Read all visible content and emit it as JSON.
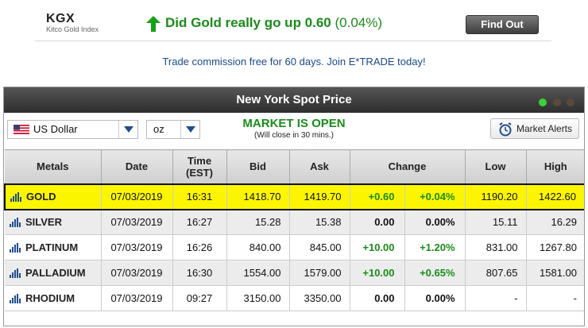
{
  "kgx": {
    "title": "KGX",
    "subtitle": "Kitco Gold Index",
    "question": "Did Gold really go up 0.60",
    "percent": "(0.04%)",
    "button_label": "Find Out"
  },
  "promo": {
    "text": "Trade commission free for 60 days. Join E*TRADE today!"
  },
  "panel": {
    "title": "New York Spot Price",
    "currency": "US Dollar",
    "unit": "oz",
    "market_status": "MARKET IS OPEN",
    "market_close": "(Will close in 30 mins.)",
    "alerts_label": "Market Alerts"
  },
  "colors": {
    "accent_green": "#1a8c1a",
    "highlight_yellow": "#fbf600",
    "header_dark": "#2e2e2e",
    "link_blue": "#1a4a8a"
  },
  "table": {
    "headers": {
      "metals": "Metals",
      "date": "Date",
      "time_line1": "Time",
      "time_line2": "(EST)",
      "bid": "Bid",
      "ask": "Ask",
      "change": "Change",
      "low": "Low",
      "high": "High"
    },
    "rows": [
      {
        "metal": "GOLD",
        "date": "07/03/2019",
        "time": "16:31",
        "bid": "1418.70",
        "ask": "1419.70",
        "change": "+0.60",
        "change_pct": "+0.04%",
        "low": "1190.20",
        "high": "1422.60"
      },
      {
        "metal": "SILVER",
        "date": "07/03/2019",
        "time": "16:27",
        "bid": "15.28",
        "ask": "15.38",
        "change": "0.00",
        "change_pct": "0.00%",
        "low": "15.11",
        "high": "16.29"
      },
      {
        "metal": "PLATINUM",
        "date": "07/03/2019",
        "time": "16:26",
        "bid": "840.00",
        "ask": "845.00",
        "change": "+10.00",
        "change_pct": "+1.20%",
        "low": "831.00",
        "high": "1267.80"
      },
      {
        "metal": "PALLADIUM",
        "date": "07/03/2019",
        "time": "16:30",
        "bid": "1554.00",
        "ask": "1579.00",
        "change": "+10.00",
        "change_pct": "+0.65%",
        "low": "807.65",
        "high": "1581.00"
      },
      {
        "metal": "RHODIUM",
        "date": "07/03/2019",
        "time": "09:27",
        "bid": "3150.00",
        "ask": "3350.00",
        "change": "0.00",
        "change_pct": "0.00%",
        "low": "-",
        "high": "-"
      }
    ]
  }
}
